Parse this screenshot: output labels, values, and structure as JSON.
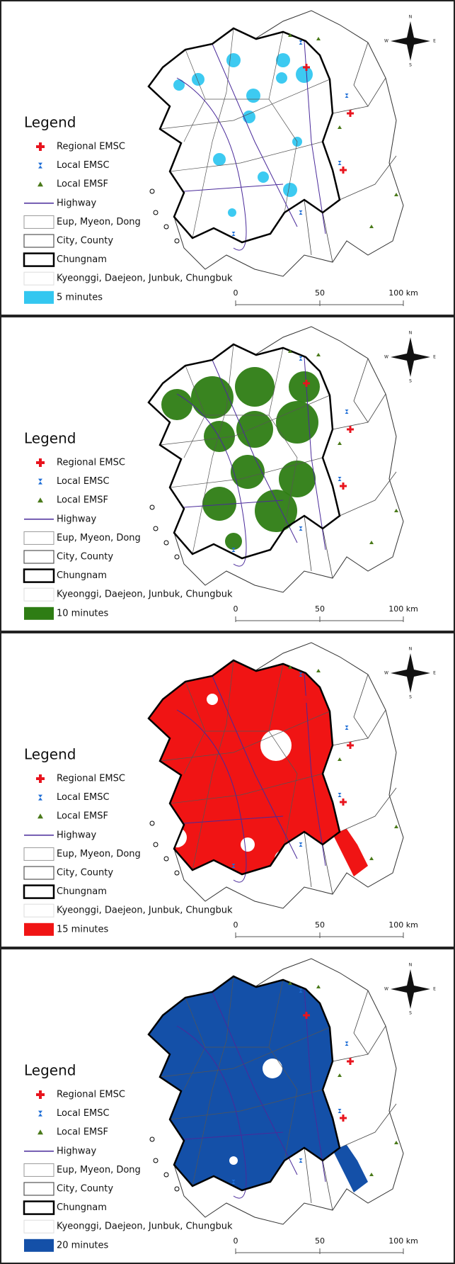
{
  "panels": [
    {
      "legend_title": "Legend",
      "color": "#33c7f0",
      "items": [
        "Regional EMSC",
        "Local EMSC",
        "Local EMSF",
        "Highway",
        "Eup, Myeon, Dong",
        "City, County",
        "Chungnam",
        "Kyeonggi, Daejeon, Junbuk, Chungbuk",
        "5 minutes"
      ],
      "scale": [
        "0",
        "50",
        "100 km"
      ],
      "compass": [
        "N",
        "E",
        "S",
        "W"
      ]
    },
    {
      "legend_title": "Legend",
      "color": "#2e7d14",
      "items": [
        "Regional EMSC",
        "Local EMSC",
        "Local EMSF",
        "Highway",
        "Eup, Myeon, Dong",
        "City, County",
        "Chungnam",
        "Kyeonggi, Daejeon, Junbuk, Chungbuk",
        "10 minutes"
      ],
      "scale": [
        "0",
        "50",
        "100 km"
      ],
      "compass": [
        "N",
        "E",
        "S",
        "W"
      ]
    },
    {
      "legend_title": "Legend",
      "color": "#f01414",
      "items": [
        "Regional EMSC",
        "Local EMSC",
        "Local EMSF",
        "Highway",
        "Eup, Myeon, Dong",
        "City, County",
        "Chungnam",
        "Kyeonggi, Daejeon, Junbuk, Chungbuk",
        "15 minutes"
      ],
      "scale": [
        "0",
        "50",
        "100 km"
      ],
      "compass": [
        "N",
        "E",
        "S",
        "W"
      ]
    },
    {
      "legend_title": "Legend",
      "color": "#1450a8",
      "items": [
        "Regional EMSC",
        "Local EMSC",
        "Local EMSF",
        "Highway",
        "Eup, Myeon, Dong",
        "City, County",
        "Chungnam",
        "Kyeonggi, Daejeon, Junbuk, Chungbuk",
        "20 minutes"
      ],
      "scale": [
        "0",
        "50",
        "100 km"
      ],
      "compass": [
        "N",
        "E",
        "S",
        "W"
      ]
    }
  ]
}
